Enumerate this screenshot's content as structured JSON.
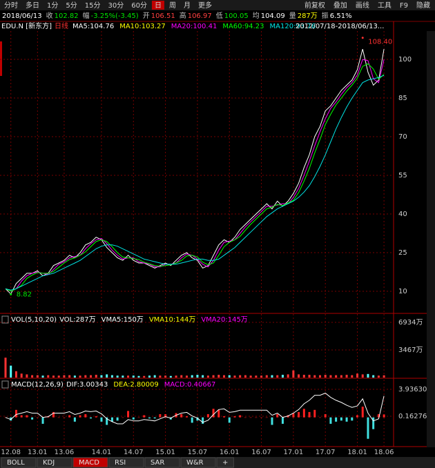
{
  "toolbar": {
    "left": [
      "分时",
      "多日",
      "1分",
      "5分",
      "15分",
      "30分",
      "60分",
      "日",
      "周",
      "月",
      "更多"
    ],
    "active_index": 7,
    "right": [
      "前复权",
      "叠加",
      "画线",
      "工具",
      "F9",
      "隐藏"
    ]
  },
  "quote": [
    {
      "text": "2018/06/13",
      "color": "#ffffff"
    },
    {
      "text": "收",
      "color": "#c0c0c0"
    },
    {
      "text": "102.82",
      "color": "#00e600"
    },
    {
      "text": "幅",
      "color": "#c0c0c0"
    },
    {
      "text": "-3.25%(-3.45)",
      "color": "#00e600"
    },
    {
      "text": "开",
      "color": "#c0c0c0"
    },
    {
      "text": "106.51",
      "color": "#ff4040"
    },
    {
      "text": "高",
      "color": "#c0c0c0"
    },
    {
      "text": "106.97",
      "color": "#ff4040"
    },
    {
      "text": "低",
      "color": "#c0c0c0"
    },
    {
      "text": "100.05",
      "color": "#00e600"
    },
    {
      "text": "均",
      "color": "#c0c0c0"
    },
    {
      "text": "104.09",
      "color": "#ffffff"
    },
    {
      "text": "量",
      "color": "#c0c0c0"
    },
    {
      "text": "287万",
      "color": "#ffff00"
    },
    {
      "text": "振",
      "color": "#c0c0c0"
    },
    {
      "text": "6.51%",
      "color": "#ffffff"
    }
  ],
  "chart_data": [
    {
      "type": "line",
      "title": "EDU.N [新东方]",
      "period": "日线",
      "range_label": "2012/07/18-2018/06/13...",
      "grid": true,
      "x": [
        "12.07",
        "12.08",
        "12.09",
        "12.10",
        "12.11",
        "12.12",
        "13.01",
        "13.02",
        "13.03",
        "13.04",
        "13.05",
        "13.06",
        "13.07",
        "13.08",
        "13.09",
        "13.10",
        "13.11",
        "13.12",
        "14.01",
        "14.02",
        "14.03",
        "14.04",
        "14.05",
        "14.06",
        "14.07",
        "14.08",
        "14.09",
        "14.10",
        "14.11",
        "14.12",
        "15.01",
        "15.02",
        "15.03",
        "15.04",
        "15.05",
        "15.06",
        "15.07",
        "15.08",
        "15.09",
        "15.10",
        "15.11",
        "15.12",
        "16.01",
        "16.02",
        "16.03",
        "16.04",
        "16.05",
        "16.06",
        "16.07",
        "16.08",
        "16.09",
        "16.10",
        "16.11",
        "16.12",
        "17.01",
        "17.02",
        "17.03",
        "17.04",
        "17.05",
        "17.06",
        "17.07",
        "17.08",
        "17.09",
        "17.10",
        "17.11",
        "17.12",
        "18.01",
        "18.02",
        "18.03",
        "18.04",
        "18.05",
        "18.06"
      ],
      "series": [
        {
          "name": "MA5:104.76",
          "color": "#ffffff",
          "values": [
            11,
            9,
            13,
            15,
            17,
            17,
            18,
            16,
            17,
            20,
            21,
            22,
            24,
            23,
            25,
            28,
            29,
            31,
            30,
            27,
            25,
            23,
            22,
            24,
            22,
            21,
            21,
            20,
            19,
            20,
            21,
            20,
            22,
            24,
            25,
            23,
            22,
            19,
            20,
            24,
            28,
            30,
            29,
            31,
            34,
            36,
            38,
            40,
            42,
            44,
            42,
            45,
            43,
            45,
            48,
            52,
            58,
            63,
            70,
            74,
            80,
            82,
            85,
            88,
            90,
            92,
            96,
            104,
            95,
            90,
            92,
            104
          ]
        },
        {
          "name": "MA20:100.41",
          "color": "#ff00ff",
          "values": [
            11,
            10,
            11,
            14,
            16,
            17,
            17.5,
            17,
            16.5,
            18.5,
            20.5,
            21.5,
            23,
            23.5,
            24,
            26.5,
            28.5,
            30,
            30.5,
            28.5,
            26,
            24,
            22.5,
            23,
            23,
            21.5,
            21,
            20.5,
            19.5,
            19.5,
            20.5,
            20.5,
            21,
            23,
            24.5,
            24,
            22.5,
            20.5,
            19.5,
            22,
            26,
            29,
            29.5,
            30,
            32.5,
            35,
            37,
            39,
            41,
            43,
            43,
            43.5,
            44,
            44,
            46.5,
            50,
            55,
            60.5,
            66.5,
            72,
            77,
            81,
            83.5,
            86.5,
            89,
            91,
            94,
            100,
            99.5,
            92.5,
            91,
            100
          ]
        },
        {
          "name": "MA60:94.23",
          "color": "#00ff00",
          "values": [
            11,
            10,
            11,
            12.3,
            15,
            16.3,
            17.3,
            17,
            17,
            17.7,
            19.3,
            21,
            22.3,
            23,
            24,
            25.3,
            27.3,
            29.3,
            30,
            29.3,
            27.3,
            25,
            23.3,
            23,
            22.7,
            22.3,
            21.3,
            20.7,
            20,
            19.7,
            20,
            20.3,
            21,
            22,
            23.7,
            24,
            23.3,
            21.3,
            20.3,
            21,
            24,
            27.3,
            29,
            30,
            31.3,
            33.7,
            36,
            38,
            40,
            42,
            42.7,
            43.7,
            43.3,
            44.3,
            45.3,
            48.3,
            52.7,
            57.7,
            63.7,
            69,
            74.7,
            78.7,
            82.3,
            85,
            87.7,
            90,
            92.7,
            97.3,
            98.3,
            96.3,
            92.3,
            94.2
          ]
        },
        {
          "name": "MA120:93.76",
          "color": "#00e5e5",
          "values": [
            11,
            10.5,
            11,
            12,
            13,
            14,
            15,
            16,
            16.5,
            17,
            18,
            19,
            20,
            21,
            22,
            23.5,
            25,
            26.5,
            27.5,
            28,
            28,
            27.5,
            26.5,
            25.5,
            24.5,
            23.5,
            22.5,
            22,
            21.5,
            21,
            20.5,
            20.5,
            20.5,
            21,
            21.5,
            22,
            22.5,
            22.5,
            22,
            22,
            22.5,
            24,
            25.5,
            27,
            29,
            31,
            33,
            35,
            37,
            39,
            40.5,
            42,
            43,
            44,
            45,
            46.5,
            48.5,
            51,
            54.5,
            58.5,
            63,
            68,
            73,
            77.5,
            81.5,
            85,
            88,
            91,
            92,
            92.5,
            93,
            93.8
          ]
        }
      ],
      "legend_extra": {
        "name": "MA10:103.27",
        "color": "#ffff00"
      },
      "ylim": [
        1.7,
        111
      ],
      "yticks": [
        10,
        25,
        40,
        55,
        70,
        85,
        100
      ],
      "annotations": [
        {
          "text": "108.40",
          "x": "18.02",
          "y": 108.4,
          "color": "#ff3030"
        },
        {
          "text": "8.82",
          "x": "12.08",
          "y": 8.82,
          "color": "#00e600"
        }
      ]
    },
    {
      "type": "bar",
      "title": "VOL(5,10,20)",
      "indicators": [
        {
          "text": "VOL:287万",
          "color": "#ffffff"
        },
        {
          "text": "VMA5:150万",
          "color": "#ffffff"
        },
        {
          "text": "VMA10:144万",
          "color": "#ffff00"
        },
        {
          "text": "VMA20:145万",
          "color": "#ff00ff"
        }
      ],
      "values": [
        2500,
        1500,
        800,
        500,
        400,
        300,
        300,
        250,
        300,
        250,
        250,
        300,
        300,
        250,
        250,
        300,
        300,
        350,
        300,
        400,
        300,
        250,
        250,
        250,
        250,
        200,
        200,
        250,
        300,
        250,
        250,
        200,
        250,
        300,
        250,
        300,
        350,
        300,
        250,
        300,
        350,
        300,
        300,
        250,
        300,
        300,
        250,
        250,
        250,
        300,
        300,
        300,
        350,
        400,
        900,
        400,
        350,
        350,
        300,
        300,
        350,
        300,
        300,
        300,
        350,
        300,
        500,
        400,
        450,
        300,
        250,
        287
      ],
      "up_color": "#ff3232",
      "down_color": "#54ffff",
      "ylim": [
        0,
        7800
      ],
      "yticks": [
        {
          "value": 3467,
          "label": "3467万"
        },
        {
          "value": 6934,
          "label": "6934万"
        }
      ]
    },
    {
      "type": "macd",
      "title": "MACD(12,26,9)",
      "indicators": [
        {
          "text": "DIF:3.00343",
          "color": "#ffffff"
        },
        {
          "text": "DEA:2.80009",
          "color": "#ffff00"
        },
        {
          "text": "MACD:0.40667",
          "color": "#ff00ff"
        }
      ],
      "dif": {
        "color": "#ffffff",
        "values": [
          0,
          -0.3,
          0.4,
          0.6,
          0.8,
          0.6,
          0.6,
          0,
          0.1,
          0.6,
          0.6,
          0.6,
          0.8,
          0.4,
          0.6,
          0.9,
          0.8,
          0.9,
          0.5,
          -0.2,
          -0.6,
          -0.9,
          -0.9,
          -0.3,
          -0.5,
          -0.5,
          -0.3,
          -0.4,
          -0.5,
          -0.2,
          0.1,
          -0.1,
          0.3,
          0.6,
          0.7,
          0.2,
          -0.1,
          -0.7,
          -0.4,
          0.4,
          1.1,
          1.2,
          0.7,
          0.8,
          1,
          1,
          1,
          1,
          1,
          1,
          0.3,
          0.6,
          0,
          0.2,
          0.6,
          1.1,
          1.9,
          2.4,
          3.1,
          3.1,
          3.4,
          2.8,
          2.4,
          2.1,
          1.7,
          1.4,
          1.6,
          2.6,
          0.6,
          -0.5,
          -0.2,
          3
        ]
      },
      "values": [
        0,
        -0.45,
        1.05,
        0.3,
        0.3,
        -0.3,
        0,
        -0.9,
        0.15,
        0.75,
        0,
        0,
        0.3,
        -0.6,
        0.3,
        0.45,
        -0.15,
        0.15,
        -0.6,
        -1.05,
        -0.6,
        -0.45,
        0,
        0.9,
        -0.3,
        0,
        0.3,
        -0.15,
        -0.15,
        0.45,
        0.45,
        -0.3,
        0.6,
        0.45,
        0.15,
        -0.75,
        -0.45,
        -0.9,
        0.45,
        1.2,
        1.05,
        0.15,
        -0.75,
        0.15,
        0.3,
        0,
        0,
        0,
        0,
        0,
        -1.05,
        0.45,
        -0.9,
        0.3,
        0.6,
        0.75,
        1.2,
        0.75,
        1.05,
        0,
        0.45,
        -0.9,
        -0.6,
        -0.45,
        -0.6,
        -0.45,
        0.3,
        1.5,
        -3,
        -1.65,
        0.45,
        0.41
      ],
      "up_color": "#ff2020",
      "down_color": "#40e0e0",
      "ylim": [
        -3.9,
        5.19
      ],
      "yticks": [
        0.16276,
        {
          "value": 3.9363,
          "label": "3.93630"
        }
      ],
      "xticks": [
        "12.08",
        "13.01",
        "13.06",
        "14.01",
        "14.07",
        "15.01",
        "15.07",
        "16.01",
        "16.07",
        "17.01",
        "17.07",
        "18.01",
        "18.06"
      ]
    }
  ],
  "tabs": {
    "items": [
      "BOLL",
      "KDJ",
      "MACD",
      "RSI",
      "SAR",
      "W&R",
      "+"
    ],
    "active_index": 2
  }
}
